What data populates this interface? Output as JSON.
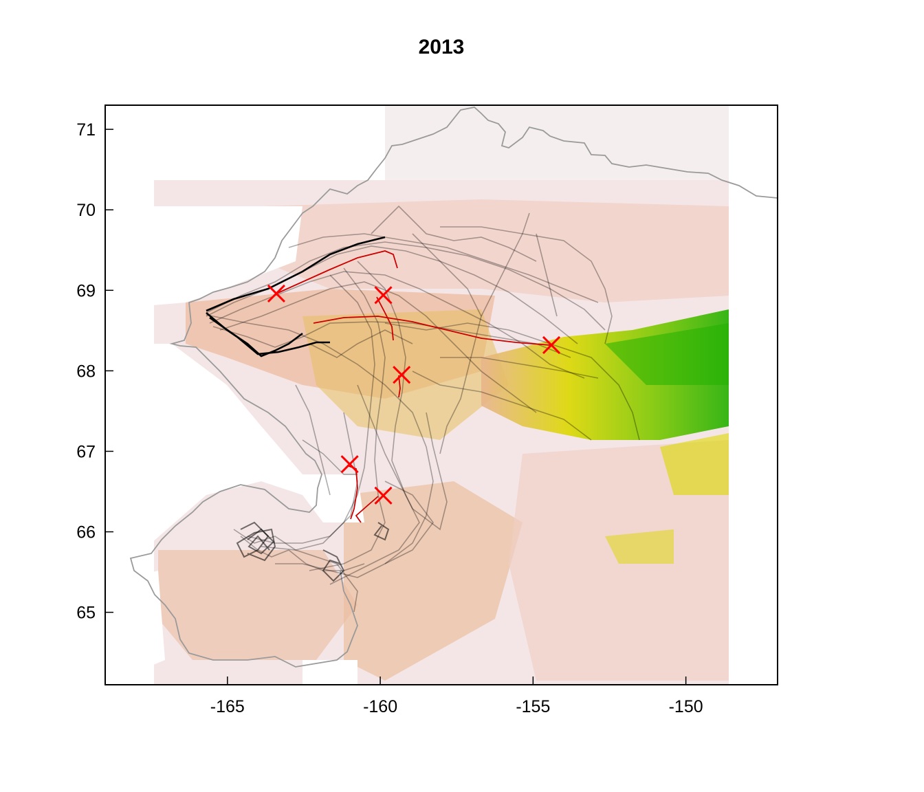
{
  "chart_data": {
    "type": "map",
    "title": "2013",
    "xlim": [
      -169,
      -147
    ],
    "ylim": [
      64.1,
      71.3
    ],
    "x_ticks": [
      "-165",
      "-160",
      "-155",
      "-150"
    ],
    "y_ticks": [
      "65",
      "66",
      "67",
      "68",
      "69",
      "70",
      "71"
    ],
    "colors": {
      "track": "#000000",
      "highlight_track": "#cc0000",
      "marker": "#ff0000",
      "coast": "#9a9a9a",
      "elevation_low": "#f4e6e6",
      "elevation_mid": "#e8b48c",
      "elevation_high": "#dcd800",
      "elevation_peak": "#22b000"
    },
    "markers": [
      {
        "lon": -163.4,
        "lat": 68.96
      },
      {
        "lon": -159.9,
        "lat": 68.94
      },
      {
        "lon": -154.4,
        "lat": 68.32
      },
      {
        "lon": -159.3,
        "lat": 67.95
      },
      {
        "lon": -161.0,
        "lat": 66.84
      },
      {
        "lon": -159.9,
        "lat": 66.45
      }
    ]
  }
}
